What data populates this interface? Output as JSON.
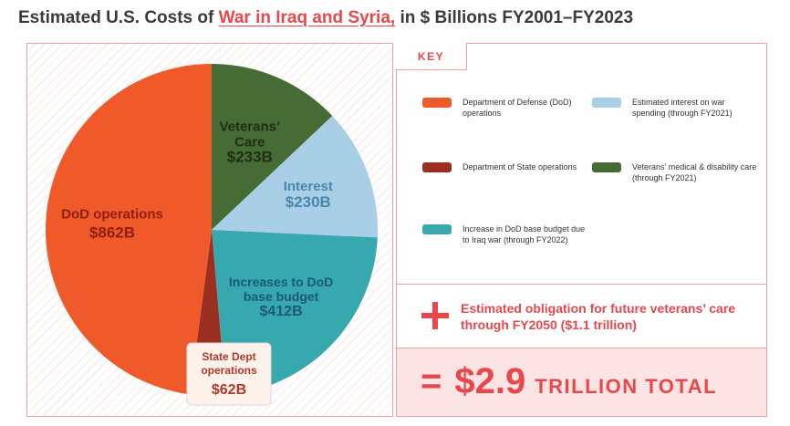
{
  "title": {
    "prefix": "Estimated U.S. Costs of ",
    "highlight": "War in Iraq and Syria,",
    "suffix": " in $ Billions FY2001–FY2023"
  },
  "chart_data": {
    "type": "pie",
    "slices": [
      {
        "key": "veterans",
        "value": 233,
        "color": "#476b35",
        "text_color": "#1f2e15",
        "label_lines": [
          "Veterans’",
          "Care"
        ],
        "value_label": "$233B"
      },
      {
        "key": "interest",
        "value": 230,
        "color": "#a9cfe6",
        "text_color": "#4a87ab",
        "label_lines": [
          "Interest"
        ],
        "value_label": "$230B"
      },
      {
        "key": "base",
        "value": 412,
        "color": "#37a8ae",
        "text_color": "#1a5a74",
        "label_lines": [
          "Increases to DoD",
          "base budget"
        ],
        "value_label": "$412B"
      },
      {
        "key": "state",
        "value": 62,
        "color": "#9b2f22",
        "text_color": "#b0392b",
        "label_lines": [
          "State Dept",
          "operations"
        ],
        "value_label": "$62B"
      },
      {
        "key": "dod",
        "value": 862,
        "color": "#f05a2b",
        "text_color": "#8f1e12",
        "label_lines": [
          "DoD operations"
        ],
        "value_label": "$862B"
      }
    ]
  },
  "key": {
    "title": "KEY",
    "items": [
      {
        "label": "Department of Defense (DoD) operations",
        "color": "#f05a2b"
      },
      {
        "label": "Estimated interest on war spending (through FY2021)",
        "color": "#a9cfe6"
      },
      {
        "label": "Department of State operations",
        "color": "#9b2f22"
      },
      {
        "label": "Veterans’ medical & disability care (through FY2021)",
        "color": "#476b35"
      },
      {
        "label": "Increase in DoD base budget due to Iraq war (through FY2022)",
        "color": "#37a8ae"
      }
    ]
  },
  "future": {
    "text": "Estimated obligation for future veterans’ care through FY2050 ($1.1 trillion)"
  },
  "total": {
    "equals": "=",
    "amount": "$2.9",
    "word": "TRILLION TOTAL"
  }
}
